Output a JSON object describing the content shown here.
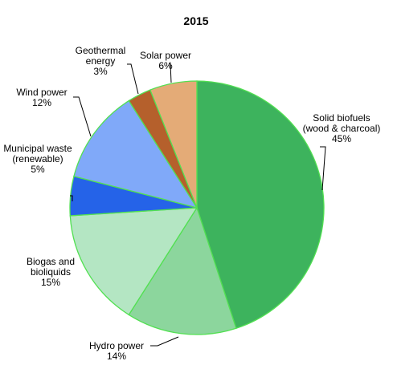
{
  "chart_data": {
    "type": "pie",
    "title": "2015",
    "unit": "%",
    "slices": [
      {
        "name": "Solid biofuels (wood & charcoal)",
        "label_lines": [
          "Solid biofuels",
          "(wood & charcoal)"
        ],
        "value": 45,
        "color": "#3db35d",
        "edge": "#52e052"
      },
      {
        "name": "Hydro power",
        "label_lines": [
          "Hydro power"
        ],
        "value": 14,
        "color": "#8cd69d",
        "edge": "#52e052"
      },
      {
        "name": "Biogas and bioliquids",
        "label_lines": [
          "Biogas and",
          "bioliquids"
        ],
        "value": 15,
        "color": "#b4e6c3",
        "edge": "#52e052"
      },
      {
        "name": "Municipal waste (renewable)",
        "label_lines": [
          "Municipal waste",
          "(renewable)"
        ],
        "value": 5,
        "color": "#2563e8",
        "edge": "#52e052"
      },
      {
        "name": "Wind power",
        "label_lines": [
          "Wind power"
        ],
        "value": 12,
        "color": "#80a9f9",
        "edge": "#52e052"
      },
      {
        "name": "Geothermal energy",
        "label_lines": [
          "Geothermal",
          "energy"
        ],
        "value": 3,
        "color": "#b5602c",
        "edge": "#52e052"
      },
      {
        "name": "Solar power",
        "label_lines": [
          "Solar power"
        ],
        "value": 6,
        "color": "#e4ab77",
        "edge": "#52e052"
      }
    ],
    "legend": "none"
  }
}
